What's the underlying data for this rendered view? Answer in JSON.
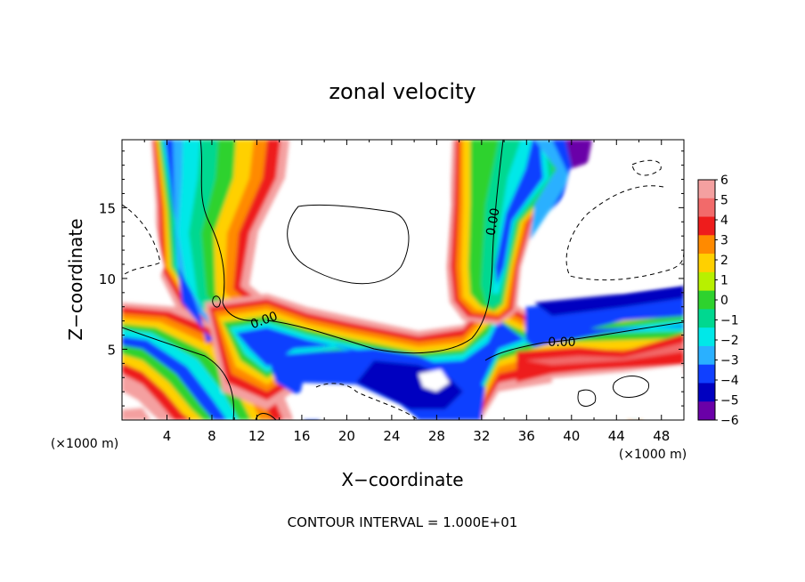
{
  "chart_data": {
    "type": "heatmap",
    "title": "zonal velocity",
    "xlabel": "X−coordinate",
    "ylabel": "Z−coordinate",
    "x_units": "(×1000 m)",
    "x_ticks": [
      "4",
      "8",
      "12",
      "16",
      "20",
      "24",
      "28",
      "32",
      "36",
      "40",
      "44",
      "48"
    ],
    "y_ticks": [
      "5",
      "10",
      "15"
    ],
    "xlim": [
      0,
      50
    ],
    "ylim": [
      0,
      19.8
    ],
    "colorbar_ticks": [
      "6",
      "5",
      "4",
      "3",
      "2",
      "1",
      "0",
      "−1",
      "−2",
      "−3",
      "−4",
      "−5",
      "−6"
    ],
    "colorbar_range": [
      -6,
      6
    ],
    "contour_label": "0.00",
    "contour_interval_text": "CONTOUR INTERVAL = 1.000E+01",
    "colors": {
      "c6": "#f4a0a0",
      "c5": "#f26a6a",
      "c4": "#ee1c1c",
      "c3": "#ff8a00",
      "c2": "#ffd000",
      "c1": "#b8f000",
      "c0": "#2ed22e",
      "cm1": "#00d890",
      "cm2": "#00e8e8",
      "cm3": "#2ab0ff",
      "cm4": "#1040ff",
      "cm5": "#0000c0",
      "cm6": "#6a00a8"
    }
  }
}
